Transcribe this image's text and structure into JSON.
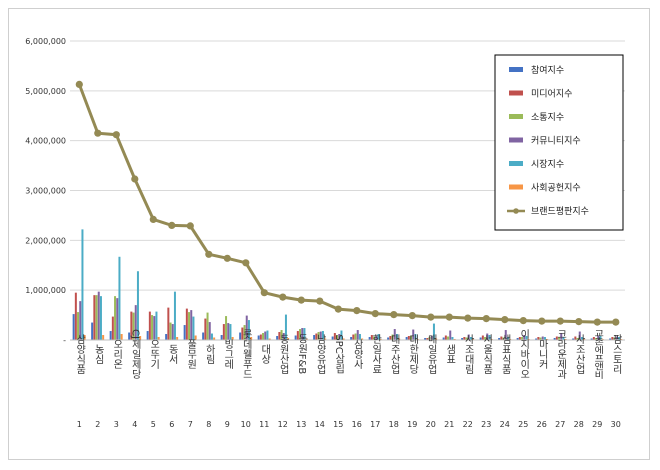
{
  "chart_data": {
    "type": "bar",
    "title": "",
    "xlabel": "",
    "ylabel": "",
    "ylim": [
      0,
      6000000
    ],
    "yticks": [
      0,
      1000000,
      2000000,
      3000000,
      4000000,
      5000000,
      6000000
    ],
    "ytick_labels": [
      "-",
      "1,000,000",
      "2,000,000",
      "3,000,000",
      "4,000,000",
      "5,000,000",
      "6,000,000"
    ],
    "legend_position": "top-right",
    "categories": [
      "삼양식품",
      "농심",
      "오리온",
      "CJ제일제당",
      "오뚜기",
      "동서",
      "풀무원",
      "하림",
      "빙그레",
      "롯데웰푸드",
      "대상",
      "동원산업",
      "동원F&B",
      "남양유업",
      "SPC삼립",
      "삼양사",
      "한일사료",
      "대주산업",
      "대한제당",
      "매일유업",
      "샘표",
      "사조대림",
      "서울식품",
      "샘표식품",
      "이지바이오",
      "마니커",
      "크라운제과",
      "사조산업",
      "교촌에프앤비",
      "팜스토리"
    ],
    "ranks": [
      "1",
      "2",
      "3",
      "4",
      "5",
      "6",
      "7",
      "8",
      "9",
      "10",
      "11",
      "12",
      "13",
      "14",
      "15",
      "16",
      "17",
      "18",
      "19",
      "20",
      "21",
      "22",
      "23",
      "24",
      "25",
      "26",
      "27",
      "28",
      "29",
      "30"
    ],
    "series": [
      {
        "name": "참여지수",
        "color": "#4472c4",
        "kind": "bar",
        "values": [
          520000,
          350000,
          180000,
          150000,
          180000,
          120000,
          300000,
          150000,
          100000,
          150000,
          90000,
          80000,
          90000,
          100000,
          70000,
          60000,
          60000,
          50000,
          60000,
          40000,
          50000,
          40000,
          50000,
          40000,
          40000,
          30000,
          40000,
          30000,
          30000,
          30000
        ]
      },
      {
        "name": "미디어지수",
        "color": "#c0504d",
        "kind": "bar",
        "values": [
          950000,
          900000,
          470000,
          570000,
          570000,
          650000,
          630000,
          430000,
          320000,
          250000,
          110000,
          160000,
          180000,
          130000,
          140000,
          110000,
          100000,
          80000,
          80000,
          40000,
          90000,
          60000,
          90000,
          70000,
          60000,
          60000,
          70000,
          70000,
          60000,
          60000
        ]
      },
      {
        "name": "소통지수",
        "color": "#9bbb59",
        "kind": "bar",
        "values": [
          560000,
          900000,
          880000,
          550000,
          500000,
          350000,
          560000,
          550000,
          480000,
          300000,
          140000,
          200000,
          220000,
          160000,
          100000,
          130000,
          70000,
          110000,
          90000,
          60000,
          70000,
          50000,
          60000,
          50000,
          60000,
          50000,
          60000,
          40000,
          40000,
          50000
        ]
      },
      {
        "name": "커뮤니티지수",
        "color": "#8064a2",
        "kind": "bar",
        "values": [
          780000,
          970000,
          840000,
          700000,
          480000,
          320000,
          600000,
          360000,
          340000,
          490000,
          170000,
          140000,
          240000,
          170000,
          120000,
          200000,
          80000,
          220000,
          210000,
          80000,
          190000,
          110000,
          130000,
          200000,
          100000,
          70000,
          140000,
          170000,
          90000,
          70000
        ]
      },
      {
        "name": "시장지수",
        "color": "#4bacc6",
        "kind": "bar",
        "values": [
          2220000,
          880000,
          1670000,
          1380000,
          570000,
          970000,
          470000,
          130000,
          320000,
          400000,
          190000,
          510000,
          240000,
          180000,
          190000,
          120000,
          120000,
          120000,
          120000,
          330000,
          60000,
          60000,
          100000,
          60000,
          80000,
          60000,
          60000,
          60000,
          90000,
          60000
        ]
      },
      {
        "name": "사회공헌지수",
        "color": "#f79646",
        "kind": "bar",
        "values": [
          100000,
          100000,
          120000,
          80000,
          60000,
          60000,
          90000,
          50000,
          60000,
          60000,
          30000,
          40000,
          30000,
          30000,
          30000,
          30000,
          20000,
          30000,
          20000,
          30000,
          20000,
          20000,
          20000,
          20000,
          20000,
          20000,
          20000,
          20000,
          20000,
          20000
        ]
      },
      {
        "name": "브랜드평판지수",
        "color": "#948a54",
        "kind": "line",
        "values": [
          5130000,
          4150000,
          4120000,
          3230000,
          2420000,
          2300000,
          2290000,
          1720000,
          1640000,
          1550000,
          950000,
          860000,
          800000,
          780000,
          620000,
          590000,
          530000,
          510000,
          490000,
          460000,
          460000,
          440000,
          430000,
          410000,
          390000,
          380000,
          380000,
          370000,
          360000,
          360000
        ]
      }
    ]
  }
}
